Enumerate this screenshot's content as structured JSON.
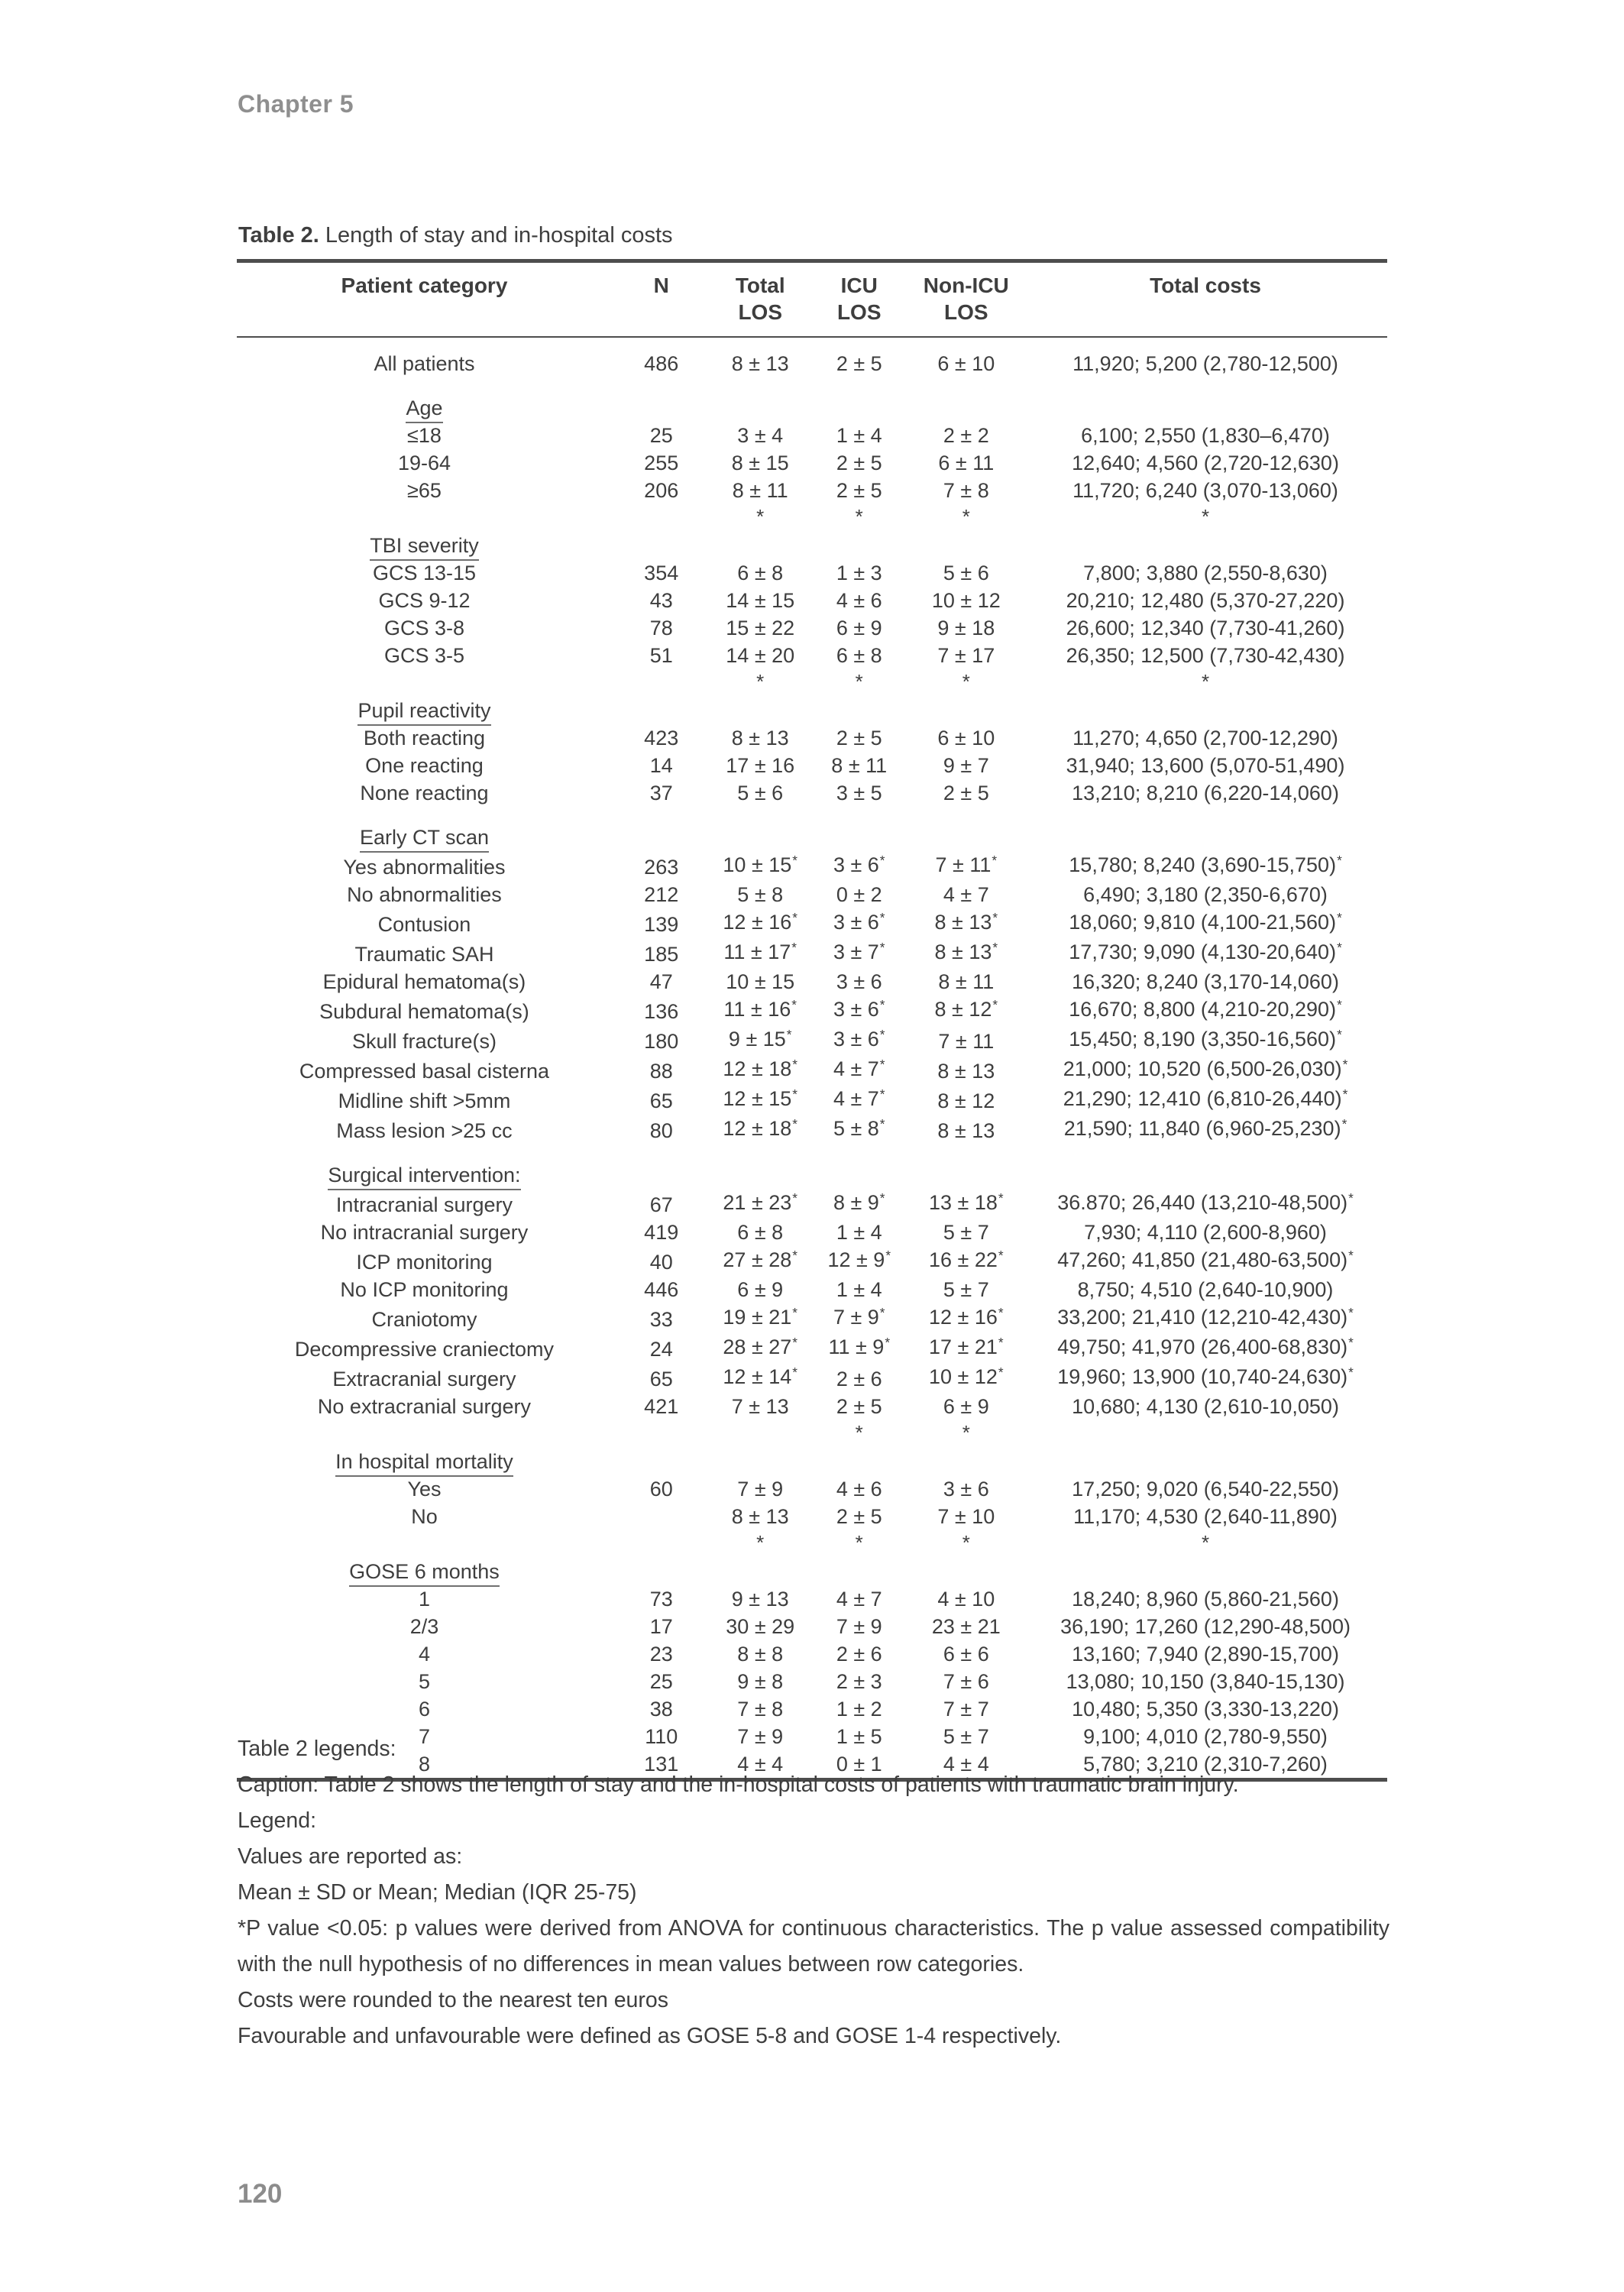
{
  "page": {
    "chapter_header": "Chapter 5",
    "page_number": "120"
  },
  "colors": {
    "text": "#3e3e3e",
    "muted_gray": "#8f8f8f",
    "rule": "#4d4d4d"
  },
  "table": {
    "title_label": "Table 2.",
    "title_text": " Length of stay and in-hospital costs",
    "columns": [
      {
        "label": "Patient category",
        "sub": ""
      },
      {
        "label": "N",
        "sub": ""
      },
      {
        "label": "Total",
        "sub": "LOS"
      },
      {
        "label": "ICU",
        "sub": "LOS"
      },
      {
        "label": "Non-ICU",
        "sub": "LOS"
      },
      {
        "label": "Total costs",
        "sub": ""
      }
    ],
    "sections": [
      {
        "header": "",
        "asterisks": [],
        "rows": [
          [
            "All patients",
            "486",
            "8 ± 13",
            "2 ± 5",
            "6 ± 10",
            "11,920; 5,200 (2,780-12,500)"
          ]
        ]
      },
      {
        "header": "Age",
        "asterisks": [],
        "rows": [
          [
            "≤18",
            "25",
            "3 ± 4",
            "1 ± 4",
            "2 ± 2",
            "6,100; 2,550 (1,830–6,470)"
          ],
          [
            "19-64",
            "255",
            "8 ± 15",
            "2 ± 5",
            "6 ± 11",
            "12,640; 4,560 (2,720-12,630)"
          ],
          [
            "≥65",
            "206",
            "8 ± 11",
            "2 ± 5",
            "7 ± 8",
            "11,720; 6,240 (3,070-13,060)"
          ]
        ]
      },
      {
        "header": "TBI severity",
        "asterisks": [
          2,
          3,
          4,
          5
        ],
        "rows": [
          [
            "GCS 13-15",
            "354",
            "6 ± 8",
            "1 ± 3",
            "5 ± 6",
            "7,800; 3,880 (2,550-8,630)"
          ],
          [
            "GCS 9-12",
            "43",
            "14 ± 15",
            "4 ± 6",
            "10 ± 12",
            "20,210; 12,480 (5,370-27,220)"
          ],
          [
            "GCS 3-8",
            "78",
            "15 ± 22",
            "6 ± 9",
            "9 ± 18",
            "26,600; 12,340 (7,730-41,260)"
          ],
          [
            "GCS 3-5",
            "51",
            "14 ± 20",
            "6 ± 8",
            "7 ± 17",
            "26,350; 12,500 (7,730-42,430)"
          ]
        ]
      },
      {
        "header": "Pupil reactivity",
        "asterisks": [
          2,
          3,
          4,
          5
        ],
        "rows": [
          [
            "Both reacting",
            "423",
            "8 ± 13",
            "2 ± 5",
            "6 ± 10",
            "11,270; 4,650 (2,700-12,290)"
          ],
          [
            "One reacting",
            "14",
            "17 ± 16",
            "8 ± 11",
            "9 ± 7",
            "31,940; 13,600 (5,070-51,490)"
          ],
          [
            "None reacting",
            "37",
            "5 ± 6",
            "3 ± 5",
            "2 ± 5",
            "13,210; 8,210 (6,220-14,060)"
          ]
        ]
      },
      {
        "header": "Early CT scan",
        "asterisks": [],
        "rows": [
          [
            "Yes abnormalities",
            "263",
            "10 ± 15*",
            "3 ± 6*",
            "7 ± 11*",
            "15,780; 8,240 (3,690-15,750)*"
          ],
          [
            "No abnormalities",
            "212",
            "5 ± 8",
            "0 ± 2",
            "4 ± 7",
            "6,490; 3,180 (2,350-6,670)"
          ],
          [
            "Contusion",
            "139",
            "12 ± 16*",
            "3 ± 6*",
            "8 ± 13*",
            "18,060; 9,810 (4,100-21,560)*"
          ],
          [
            "Traumatic SAH",
            "185",
            "11 ± 17*",
            "3 ± 7*",
            "8 ± 13*",
            "17,730; 9,090 (4,130-20,640)*"
          ],
          [
            "Epidural hematoma(s)",
            "47",
            "10 ± 15",
            "3 ± 6",
            "8 ± 11",
            "16,320; 8,240 (3,170-14,060)"
          ],
          [
            "Subdural hematoma(s)",
            "136",
            "11 ± 16*",
            "3 ± 6*",
            "8 ± 12*",
            "16,670; 8,800 (4,210-20,290)*"
          ],
          [
            "Skull fracture(s)",
            "180",
            "9 ± 15*",
            "3 ± 6*",
            "7 ± 11",
            "15,450; 8,190 (3,350-16,560)*"
          ],
          [
            "Compressed basal cisterna",
            "88",
            "12 ± 18*",
            "4 ± 7*",
            "8 ± 13",
            "21,000; 10,520 (6,500-26,030)*"
          ],
          [
            "Midline shift >5mm",
            "65",
            "12 ± 15*",
            "4 ± 7*",
            "8 ± 12",
            "21,290; 12,410 (6,810-26,440)*"
          ],
          [
            "Mass lesion >25 cc",
            "80",
            "12 ± 18*",
            "5 ± 8*",
            "8 ± 13",
            "21,590; 11,840 (6,960-25,230)*"
          ]
        ]
      },
      {
        "header": "Surgical intervention:",
        "asterisks": [],
        "rows": [
          [
            "Intracranial surgery",
            "67",
            "21 ± 23*",
            "8 ± 9*",
            "13 ± 18*",
            "36.870; 26,440 (13,210-48,500)*"
          ],
          [
            "No intracranial surgery",
            "419",
            "6 ± 8",
            "1 ± 4",
            "5 ± 7",
            "7,930; 4,110 (2,600-8,960)"
          ],
          [
            "ICP monitoring",
            "40",
            "27 ± 28*",
            "12 ± 9*",
            "16 ± 22*",
            "47,260; 41,850 (21,480-63,500)*"
          ],
          [
            "No ICP monitoring",
            "446",
            "6 ± 9",
            "1 ± 4",
            "5 ± 7",
            "8,750; 4,510 (2,640-10,900)"
          ],
          [
            "Craniotomy",
            "33",
            "19 ± 21*",
            "7 ± 9*",
            "12 ± 16*",
            "33,200; 21,410 (12,210-42,430)*"
          ],
          [
            "Decompressive craniectomy",
            "24",
            "28 ± 27*",
            "11 ± 9*",
            "17 ± 21*",
            "49,750; 41,970 (26,400-68,830)*"
          ],
          [
            "Extracranial surgery",
            "65",
            "12 ± 14*",
            "2 ± 6",
            "10 ± 12*",
            "19,960; 13,900 (10,740-24,630)*"
          ],
          [
            "No extracranial surgery",
            "421",
            "7 ± 13",
            "2 ± 5",
            "6 ± 9",
            "10,680; 4,130 (2,610-10,050)"
          ]
        ]
      },
      {
        "header": "In hospital mortality",
        "asterisks": [
          3,
          4
        ],
        "rows": [
          [
            "Yes",
            "60",
            "7 ± 9",
            "4 ± 6",
            "3 ± 6",
            "17,250; 9,020 (6,540-22,550)"
          ],
          [
            "No",
            "",
            "8 ± 13",
            "2 ± 5",
            "7 ± 10",
            "11,170; 4,530 (2,640-11,890)"
          ]
        ]
      },
      {
        "header": "GOSE 6 months",
        "asterisks": [
          2,
          3,
          4,
          5
        ],
        "rows": [
          [
            "1",
            "73",
            "9 ± 13",
            "4 ± 7",
            "4 ± 10",
            "18,240; 8,960 (5,860-21,560)"
          ],
          [
            "2/3",
            "17",
            "30 ± 29",
            "7 ± 9",
            "23 ± 21",
            "36,190; 17,260 (12,290-48,500)"
          ],
          [
            "4",
            "23",
            "8 ± 8",
            "2 ± 6",
            "6 ± 6",
            "13,160; 7,940 (2,890-15,700)"
          ],
          [
            "5",
            "25",
            "9 ± 8",
            "2 ± 3",
            "7 ± 6",
            "13,080; 10,150 (3,840-15,130)"
          ],
          [
            "6",
            "38",
            "7 ± 8",
            "1 ± 2",
            "7 ± 7",
            "10,480; 5,350 (3,330-13,220)"
          ],
          [
            "7",
            "110",
            "7 ± 9",
            "1 ± 5",
            "5 ± 7",
            "9,100; 4,010 (2,780-9,550)"
          ],
          [
            "8",
            "131",
            "4 ± 4",
            "0 ± 1",
            "4 ± 4",
            "5,780; 3,210 (2,310-7,260)"
          ]
        ]
      }
    ]
  },
  "legends": {
    "justified_index": 5,
    "lines": [
      "Table 2 legends:",
      "Caption: Table 2 shows the length of stay and the in-hospital costs of patients with traumatic brain injury.",
      "Legend:",
      "Values are reported as:",
      "Mean ± SD or Mean; Median (IQR 25-75)",
      "*P value <0.05: p values were derived from ANOVA for continuous characteristics. The p value assessed compatibility with the null hypothesis of no differences in mean values between row categories.",
      "Costs were rounded to the nearest ten euros",
      "Favourable and unfavourable were defined as GOSE 5-8 and GOSE 1-4 respectively."
    ]
  }
}
